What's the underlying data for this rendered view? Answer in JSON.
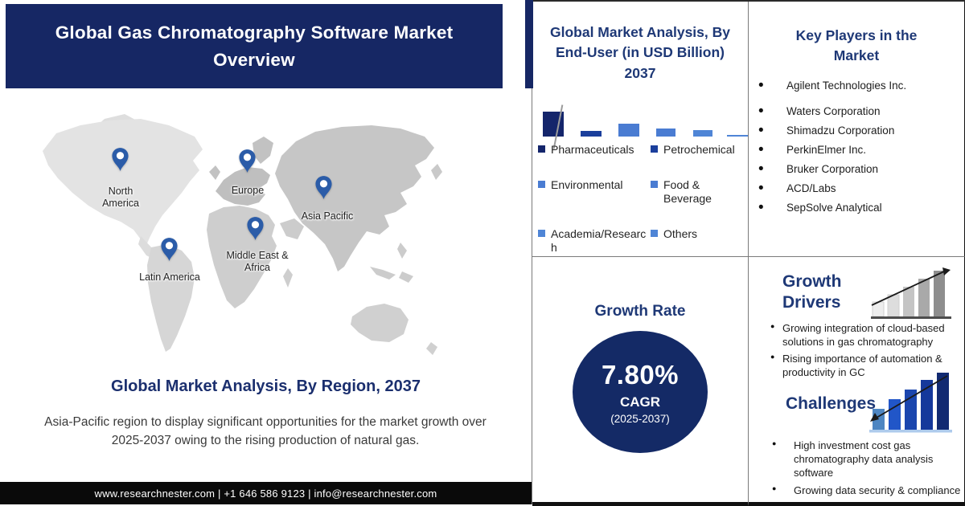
{
  "colors": {
    "navy_band": "#162764",
    "panel_title_navy": "#1e3876",
    "circle_navy": "#142a66",
    "footer_bg": "#0a0a0a",
    "pin_blue": "#2b5ca8"
  },
  "icons": {
    "pin": "location-pin",
    "growth_drivers": "ascending-gray-bars-arrow-up",
    "challenges": "ascending-blue-bars-arrow-down"
  },
  "header": {
    "title": "Global Gas Chromatography Software Market Overview"
  },
  "map": {
    "pins": [
      {
        "label": "North America"
      },
      {
        "label": "Europe"
      },
      {
        "label": "Asia Pacific"
      },
      {
        "label": "Latin America"
      },
      {
        "label": "Middle East & Africa"
      }
    ],
    "heading": "Global Market Analysis, By Region, 2037",
    "description": "Asia-Pacific region to display significant opportunities for the market growth over 2025-2037 owing to the rising production of natural gas."
  },
  "footer": {
    "text": "www.researchnester.com | +1 646 586 9123 | info@researchnester.com"
  },
  "end_user_panel": {
    "title": "Global Market Analysis, By End-User (in USD Billion) 2037"
  },
  "chart_data": {
    "type": "bar",
    "title": "Global Market Analysis, By End-User (in USD Billion) 2037",
    "categories": [
      "Pharmaceuticals",
      "Petrochemical",
      "Environmental",
      "Food & Beverage",
      "Academia/Research",
      "Others"
    ],
    "values": [
      3.0,
      0.7,
      1.5,
      1.0,
      0.8,
      0.2
    ],
    "value_note": "relative bar heights, axis unlabeled in source",
    "colors": [
      "#14256b",
      "#1b3f9c",
      "#4a7cd2",
      "#4a7cd2",
      "#4f85d6",
      "#4f85d6"
    ],
    "legend_position": "bottom",
    "axes_visible": false
  },
  "key_players": {
    "title": "Key Players in the Market",
    "items": [
      "Agilent Technologies Inc.",
      "Waters Corporation",
      "Shimadzu Corporation",
      "PerkinElmer Inc.",
      "Bruker Corporation",
      "ACD/Labs",
      "SepSolve Analytical"
    ]
  },
  "growth_rate": {
    "title": "Growth Rate",
    "value": "7.80%",
    "label": "CAGR",
    "period": "(2025-2037)"
  },
  "growth_drivers": {
    "title": "Growth Drivers",
    "items": [
      "Growing integration of cloud-based solutions in gas chromatography",
      "Rising importance of automation & productivity in GC"
    ]
  },
  "challenges": {
    "title": "Challenges",
    "items": [
      "High investment cost gas chromatography data analysis software",
      "Growing data security & compliance concerns"
    ]
  }
}
